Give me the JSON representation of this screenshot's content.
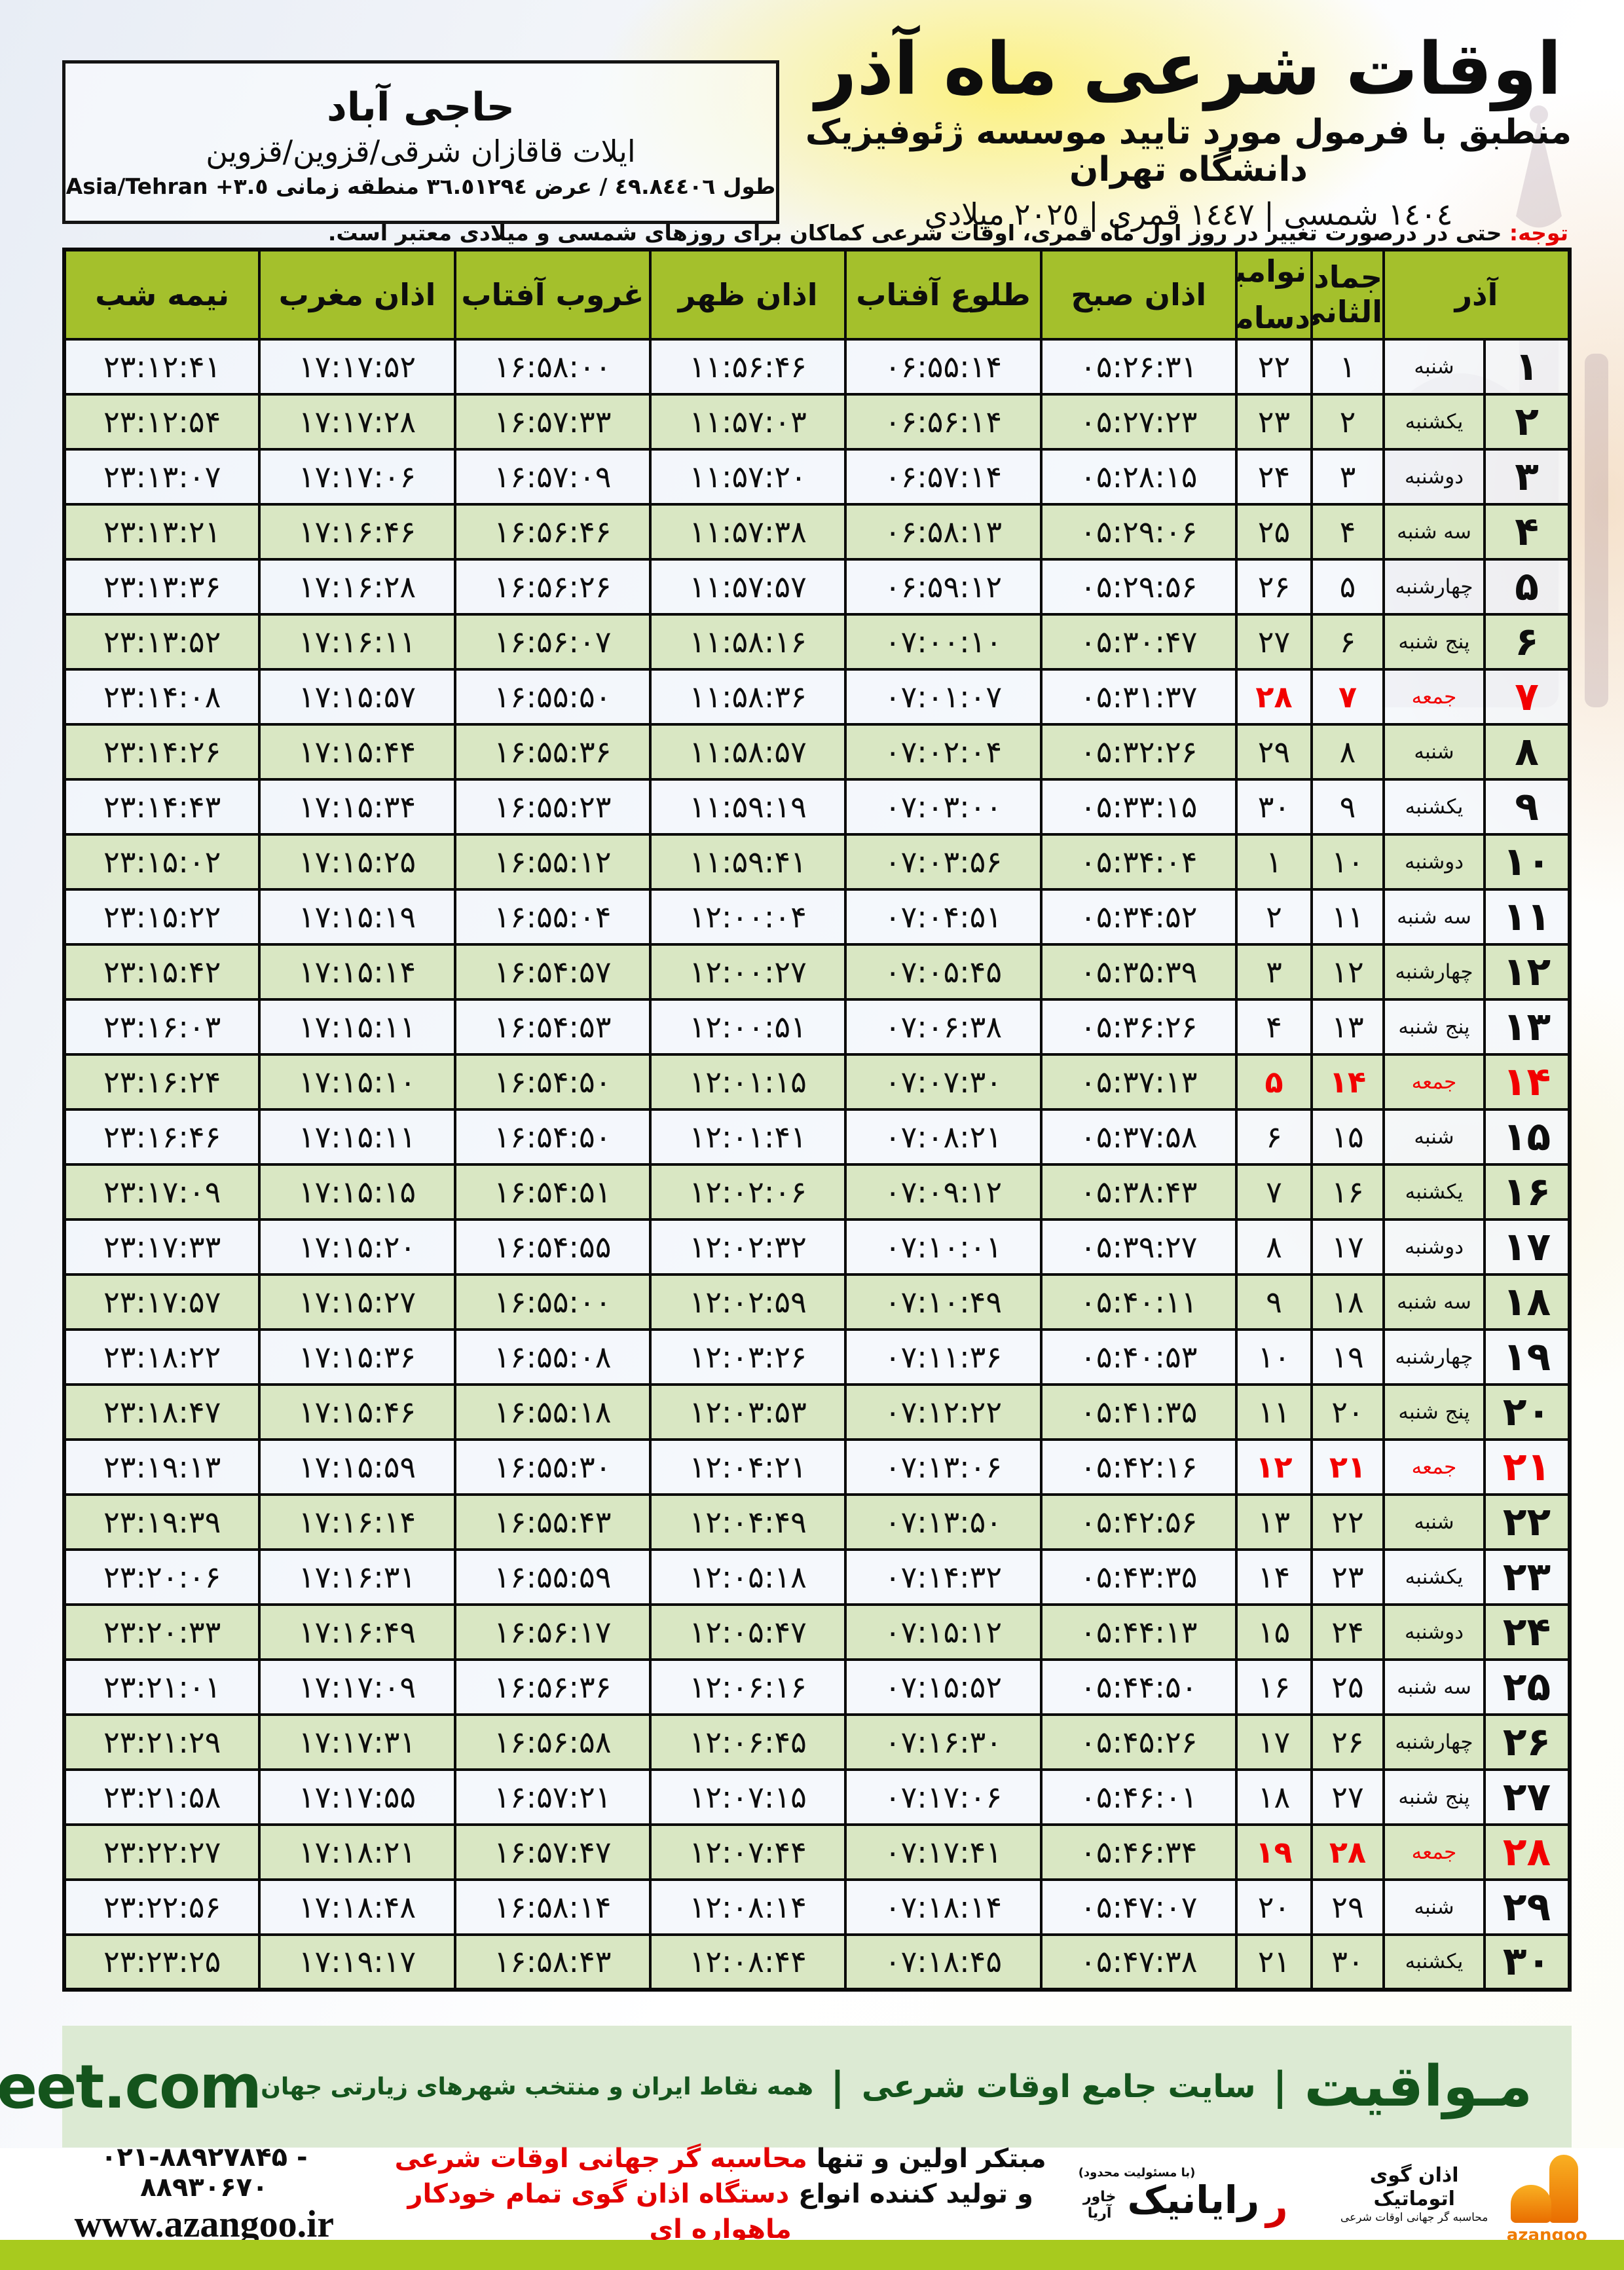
{
  "colors": {
    "header_green": "#a4c02c",
    "row_green": "#d9e7c3",
    "friday_red": "#f20000",
    "note_red": "#e30000",
    "mavaqeet_green": "#14541c",
    "bottom_bar_green": "#a8ca1e",
    "azangoo_orange": "#ef7c00"
  },
  "location_box": {
    "city": "حاجی آباد",
    "region": "ایلات قاقازان شرقی/قزوین/قزوین",
    "geo_rtl": "طول ٤٩.٨٤٤٠٦ / عرض ٣٦.٥١٢٩٤ منطقه زمانی",
    "geo_ltr": "Asia/Tehran +٣.٥"
  },
  "header": {
    "title": "اوقات شرعی ماه آذر",
    "subtitle": "منطبق با فرمول مورد تایید موسسه ژئوفیزیک دانشگاه تهران",
    "calendars": "١٤٠٤ شمسی | ١٤٤٧ قمری | ٢٠٢٥ میلادی"
  },
  "note": {
    "label": "توجه:",
    "text": " حتی در درصورت تغییر در روز اول ماه قمری، اوقات شرعی کماکان برای روزهای شمسی و میلادی معتبر است."
  },
  "table": {
    "columns": {
      "azar": "آذر",
      "jumada": "جمادی الثانی",
      "nov": "نوامبر",
      "dec": "دسامبر",
      "sobh": "اذان صبح",
      "sunrise": "طلوع آفتاب",
      "zohr": "اذان ظهر",
      "sunset": "غروب آفتاب",
      "maghrib": "اذان مغرب",
      "midnight": "نیمه شب"
    },
    "rows": [
      {
        "azar": "۱",
        "weekday": "شنبه",
        "jumada": "۱",
        "greg": "۲۲",
        "sobh": "۰۵:۲۶:۳۱",
        "sunrise": "۰۶:۵۵:۱۴",
        "zohr": "۱۱:۵۶:۴۶",
        "sunset": "۱۶:۵۸:۰۰",
        "maghrib": "۱۷:۱۷:۵۲",
        "midnight": "۲۳:۱۲:۴۱",
        "friday": false
      },
      {
        "azar": "۲",
        "weekday": "یکشنبه",
        "jumada": "۲",
        "greg": "۲۳",
        "sobh": "۰۵:۲۷:۲۳",
        "sunrise": "۰۶:۵۶:۱۴",
        "zohr": "۱۱:۵۷:۰۳",
        "sunset": "۱۶:۵۷:۳۳",
        "maghrib": "۱۷:۱۷:۲۸",
        "midnight": "۲۳:۱۲:۵۴",
        "friday": false
      },
      {
        "azar": "۳",
        "weekday": "دوشنبه",
        "jumada": "۳",
        "greg": "۲۴",
        "sobh": "۰۵:۲۸:۱۵",
        "sunrise": "۰۶:۵۷:۱۴",
        "zohr": "۱۱:۵۷:۲۰",
        "sunset": "۱۶:۵۷:۰۹",
        "maghrib": "۱۷:۱۷:۰۶",
        "midnight": "۲۳:۱۳:۰۷",
        "friday": false
      },
      {
        "azar": "۴",
        "weekday": "سه شنبه",
        "jumada": "۴",
        "greg": "۲۵",
        "sobh": "۰۵:۲۹:۰۶",
        "sunrise": "۰۶:۵۸:۱۳",
        "zohr": "۱۱:۵۷:۳۸",
        "sunset": "۱۶:۵۶:۴۶",
        "maghrib": "۱۷:۱۶:۴۶",
        "midnight": "۲۳:۱۳:۲۱",
        "friday": false
      },
      {
        "azar": "۵",
        "weekday": "چهارشنبه",
        "jumada": "۵",
        "greg": "۲۶",
        "sobh": "۰۵:۲۹:۵۶",
        "sunrise": "۰۶:۵۹:۱۲",
        "zohr": "۱۱:۵۷:۵۷",
        "sunset": "۱۶:۵۶:۲۶",
        "maghrib": "۱۷:۱۶:۲۸",
        "midnight": "۲۳:۱۳:۳۶",
        "friday": false
      },
      {
        "azar": "۶",
        "weekday": "پنج شنبه",
        "jumada": "۶",
        "greg": "۲۷",
        "sobh": "۰۵:۳۰:۴۷",
        "sunrise": "۰۷:۰۰:۱۰",
        "zohr": "۱۱:۵۸:۱۶",
        "sunset": "۱۶:۵۶:۰۷",
        "maghrib": "۱۷:۱۶:۱۱",
        "midnight": "۲۳:۱۳:۵۲",
        "friday": false
      },
      {
        "azar": "۷",
        "weekday": "جمعه",
        "jumada": "۷",
        "greg": "۲۸",
        "sobh": "۰۵:۳۱:۳۷",
        "sunrise": "۰۷:۰۱:۰۷",
        "zohr": "۱۱:۵۸:۳۶",
        "sunset": "۱۶:۵۵:۵۰",
        "maghrib": "۱۷:۱۵:۵۷",
        "midnight": "۲۳:۱۴:۰۸",
        "friday": true
      },
      {
        "azar": "۸",
        "weekday": "شنبه",
        "jumada": "۸",
        "greg": "۲۹",
        "sobh": "۰۵:۳۲:۲۶",
        "sunrise": "۰۷:۰۲:۰۴",
        "zohr": "۱۱:۵۸:۵۷",
        "sunset": "۱۶:۵۵:۳۶",
        "maghrib": "۱۷:۱۵:۴۴",
        "midnight": "۲۳:۱۴:۲۶",
        "friday": false
      },
      {
        "azar": "۹",
        "weekday": "یکشنبه",
        "jumada": "۹",
        "greg": "۳۰",
        "sobh": "۰۵:۳۳:۱۵",
        "sunrise": "۰۷:۰۳:۰۰",
        "zohr": "۱۱:۵۹:۱۹",
        "sunset": "۱۶:۵۵:۲۳",
        "maghrib": "۱۷:۱۵:۳۴",
        "midnight": "۲۳:۱۴:۴۳",
        "friday": false
      },
      {
        "azar": "۱۰",
        "weekday": "دوشنبه",
        "jumada": "۱۰",
        "greg": "۱",
        "sobh": "۰۵:۳۴:۰۴",
        "sunrise": "۰۷:۰۳:۵۶",
        "zohr": "۱۱:۵۹:۴۱",
        "sunset": "۱۶:۵۵:۱۲",
        "maghrib": "۱۷:۱۵:۲۵",
        "midnight": "۲۳:۱۵:۰۲",
        "friday": false
      },
      {
        "azar": "۱۱",
        "weekday": "سه شنبه",
        "jumada": "۱۱",
        "greg": "۲",
        "sobh": "۰۵:۳۴:۵۲",
        "sunrise": "۰۷:۰۴:۵۱",
        "zohr": "۱۲:۰۰:۰۴",
        "sunset": "۱۶:۵۵:۰۴",
        "maghrib": "۱۷:۱۵:۱۹",
        "midnight": "۲۳:۱۵:۲۲",
        "friday": false
      },
      {
        "azar": "۱۲",
        "weekday": "چهارشنبه",
        "jumada": "۱۲",
        "greg": "۳",
        "sobh": "۰۵:۳۵:۳۹",
        "sunrise": "۰۷:۰۵:۴۵",
        "zohr": "۱۲:۰۰:۲۷",
        "sunset": "۱۶:۵۴:۵۷",
        "maghrib": "۱۷:۱۵:۱۴",
        "midnight": "۲۳:۱۵:۴۲",
        "friday": false
      },
      {
        "azar": "۱۳",
        "weekday": "پنج شنبه",
        "jumada": "۱۳",
        "greg": "۴",
        "sobh": "۰۵:۳۶:۲۶",
        "sunrise": "۰۷:۰۶:۳۸",
        "zohr": "۱۲:۰۰:۵۱",
        "sunset": "۱۶:۵۴:۵۳",
        "maghrib": "۱۷:۱۵:۱۱",
        "midnight": "۲۳:۱۶:۰۳",
        "friday": false
      },
      {
        "azar": "۱۴",
        "weekday": "جمعه",
        "jumada": "۱۴",
        "greg": "۵",
        "sobh": "۰۵:۳۷:۱۳",
        "sunrise": "۰۷:۰۷:۳۰",
        "zohr": "۱۲:۰۱:۱۵",
        "sunset": "۱۶:۵۴:۵۰",
        "maghrib": "۱۷:۱۵:۱۰",
        "midnight": "۲۳:۱۶:۲۴",
        "friday": true
      },
      {
        "azar": "۱۵",
        "weekday": "شنبه",
        "jumada": "۱۵",
        "greg": "۶",
        "sobh": "۰۵:۳۷:۵۸",
        "sunrise": "۰۷:۰۸:۲۱",
        "zohr": "۱۲:۰۱:۴۱",
        "sunset": "۱۶:۵۴:۵۰",
        "maghrib": "۱۷:۱۵:۱۱",
        "midnight": "۲۳:۱۶:۴۶",
        "friday": false
      },
      {
        "azar": "۱۶",
        "weekday": "یکشنبه",
        "jumada": "۱۶",
        "greg": "۷",
        "sobh": "۰۵:۳۸:۴۳",
        "sunrise": "۰۷:۰۹:۱۲",
        "zohr": "۱۲:۰۲:۰۶",
        "sunset": "۱۶:۵۴:۵۱",
        "maghrib": "۱۷:۱۵:۱۵",
        "midnight": "۲۳:۱۷:۰۹",
        "friday": false
      },
      {
        "azar": "۱۷",
        "weekday": "دوشنبه",
        "jumada": "۱۷",
        "greg": "۸",
        "sobh": "۰۵:۳۹:۲۷",
        "sunrise": "۰۷:۱۰:۰۱",
        "zohr": "۱۲:۰۲:۳۲",
        "sunset": "۱۶:۵۴:۵۵",
        "maghrib": "۱۷:۱۵:۲۰",
        "midnight": "۲۳:۱۷:۳۳",
        "friday": false
      },
      {
        "azar": "۱۸",
        "weekday": "سه شنبه",
        "jumada": "۱۸",
        "greg": "۹",
        "sobh": "۰۵:۴۰:۱۱",
        "sunrise": "۰۷:۱۰:۴۹",
        "zohr": "۱۲:۰۲:۵۹",
        "sunset": "۱۶:۵۵:۰۰",
        "maghrib": "۱۷:۱۵:۲۷",
        "midnight": "۲۳:۱۷:۵۷",
        "friday": false
      },
      {
        "azar": "۱۹",
        "weekday": "چهارشنبه",
        "jumada": "۱۹",
        "greg": "۱۰",
        "sobh": "۰۵:۴۰:۵۳",
        "sunrise": "۰۷:۱۱:۳۶",
        "zohr": "۱۲:۰۳:۲۶",
        "sunset": "۱۶:۵۵:۰۸",
        "maghrib": "۱۷:۱۵:۳۶",
        "midnight": "۲۳:۱۸:۲۲",
        "friday": false
      },
      {
        "azar": "۲۰",
        "weekday": "پنج شنبه",
        "jumada": "۲۰",
        "greg": "۱۱",
        "sobh": "۰۵:۴۱:۳۵",
        "sunrise": "۰۷:۱۲:۲۲",
        "zohr": "۱۲:۰۳:۵۳",
        "sunset": "۱۶:۵۵:۱۸",
        "maghrib": "۱۷:۱۵:۴۶",
        "midnight": "۲۳:۱۸:۴۷",
        "friday": false
      },
      {
        "azar": "۲۱",
        "weekday": "جمعه",
        "jumada": "۲۱",
        "greg": "۱۲",
        "sobh": "۰۵:۴۲:۱۶",
        "sunrise": "۰۷:۱۳:۰۶",
        "zohr": "۱۲:۰۴:۲۱",
        "sunset": "۱۶:۵۵:۳۰",
        "maghrib": "۱۷:۱۵:۵۹",
        "midnight": "۲۳:۱۹:۱۳",
        "friday": true
      },
      {
        "azar": "۲۲",
        "weekday": "شنبه",
        "jumada": "۲۲",
        "greg": "۱۳",
        "sobh": "۰۵:۴۲:۵۶",
        "sunrise": "۰۷:۱۳:۵۰",
        "zohr": "۱۲:۰۴:۴۹",
        "sunset": "۱۶:۵۵:۴۳",
        "maghrib": "۱۷:۱۶:۱۴",
        "midnight": "۲۳:۱۹:۳۹",
        "friday": false
      },
      {
        "azar": "۲۳",
        "weekday": "یکشنبه",
        "jumada": "۲۳",
        "greg": "۱۴",
        "sobh": "۰۵:۴۳:۳۵",
        "sunrise": "۰۷:۱۴:۳۲",
        "zohr": "۱۲:۰۵:۱۸",
        "sunset": "۱۶:۵۵:۵۹",
        "maghrib": "۱۷:۱۶:۳۱",
        "midnight": "۲۳:۲۰:۰۶",
        "friday": false
      },
      {
        "azar": "۲۴",
        "weekday": "دوشنبه",
        "jumada": "۲۴",
        "greg": "۱۵",
        "sobh": "۰۵:۴۴:۱۳",
        "sunrise": "۰۷:۱۵:۱۲",
        "zohr": "۱۲:۰۵:۴۷",
        "sunset": "۱۶:۵۶:۱۷",
        "maghrib": "۱۷:۱۶:۴۹",
        "midnight": "۲۳:۲۰:۳۳",
        "friday": false
      },
      {
        "azar": "۲۵",
        "weekday": "سه شنبه",
        "jumada": "۲۵",
        "greg": "۱۶",
        "sobh": "۰۵:۴۴:۵۰",
        "sunrise": "۰۷:۱۵:۵۲",
        "zohr": "۱۲:۰۶:۱۶",
        "sunset": "۱۶:۵۶:۳۶",
        "maghrib": "۱۷:۱۷:۰۹",
        "midnight": "۲۳:۲۱:۰۱",
        "friday": false
      },
      {
        "azar": "۲۶",
        "weekday": "چهارشنبه",
        "jumada": "۲۶",
        "greg": "۱۷",
        "sobh": "۰۵:۴۵:۲۶",
        "sunrise": "۰۷:۱۶:۳۰",
        "zohr": "۱۲:۰۶:۴۵",
        "sunset": "۱۶:۵۶:۵۸",
        "maghrib": "۱۷:۱۷:۳۱",
        "midnight": "۲۳:۲۱:۲۹",
        "friday": false
      },
      {
        "azar": "۲۷",
        "weekday": "پنج شنبه",
        "jumada": "۲۷",
        "greg": "۱۸",
        "sobh": "۰۵:۴۶:۰۱",
        "sunrise": "۰۷:۱۷:۰۶",
        "zohr": "۱۲:۰۷:۱۵",
        "sunset": "۱۶:۵۷:۲۱",
        "maghrib": "۱۷:۱۷:۵۵",
        "midnight": "۲۳:۲۱:۵۸",
        "friday": false
      },
      {
        "azar": "۲۸",
        "weekday": "جمعه",
        "jumada": "۲۸",
        "greg": "۱۹",
        "sobh": "۰۵:۴۶:۳۴",
        "sunrise": "۰۷:۱۷:۴۱",
        "zohr": "۱۲:۰۷:۴۴",
        "sunset": "۱۶:۵۷:۴۷",
        "maghrib": "۱۷:۱۸:۲۱",
        "midnight": "۲۳:۲۲:۲۷",
        "friday": true
      },
      {
        "azar": "۲۹",
        "weekday": "شنبه",
        "jumada": "۲۹",
        "greg": "۲۰",
        "sobh": "۰۵:۴۷:۰۷",
        "sunrise": "۰۷:۱۸:۱۴",
        "zohr": "۱۲:۰۸:۱۴",
        "sunset": "۱۶:۵۸:۱۴",
        "maghrib": "۱۷:۱۸:۴۸",
        "midnight": "۲۳:۲۲:۵۶",
        "friday": false
      },
      {
        "azar": "۳۰",
        "weekday": "یکشنبه",
        "jumada": "۳۰",
        "greg": "۲۱",
        "sobh": "۰۵:۴۷:۳۸",
        "sunrise": "۰۷:۱۸:۴۵",
        "zohr": "۱۲:۰۸:۴۴",
        "sunset": "۱۶:۵۸:۴۳",
        "maghrib": "۱۷:۱۹:۱۷",
        "midnight": "۲۳:۲۳:۲۵",
        "friday": false
      }
    ]
  },
  "mavaqeet_bar": {
    "brand": "مـواقیت",
    "sep": "|",
    "tagline1": "سایت جامع اوقات شرعی",
    "tagline2": "همه نقاط ایران و منتخب شهرهای زیارتی جهان",
    "site": "mavaqeet.com"
  },
  "footer": {
    "phone": "۰۲۱-۸۸۹۲۷۸۴۵ - ۸۸۹۳۰۶۷۰",
    "website": "www.azangoo.ir",
    "line1_black": "مبتکر اولین و تنها ",
    "line1_red": "محاسبه گر جهانی اوقات شرعی",
    "line2_black": "و تولید کننده انواع ",
    "line2_red": "دستگاه اذان گوی تمام خودکار ماهواره ای",
    "rayanik": {
      "note": "(با مسئولیت محدود)",
      "mark": "ر",
      "name": "رایانیک",
      "sub": "خاور آریا"
    },
    "azangoo": {
      "line1": "اذان گوی اتوماتیک",
      "line2": "محاسبه گر جهانی اوقات شرعی",
      "name": "azangoo"
    }
  }
}
